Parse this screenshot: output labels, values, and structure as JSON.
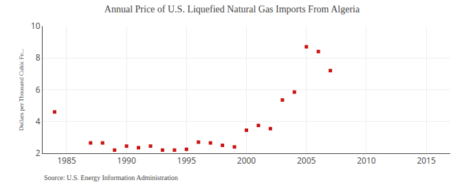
{
  "chart_data": {
    "type": "scatter",
    "title": "Annual Price of U.S. Liquefied Natural Gas Imports From Algeria",
    "ylabel": "Dollars per Thousand Cubic Fe...",
    "annotations": [
      "Source: U.S. Energy Information Administration"
    ],
    "x": [
      1984,
      1987,
      1988,
      1989,
      1990,
      1991,
      1992,
      1993,
      1994,
      1995,
      1996,
      1997,
      1998,
      1999,
      2000,
      2001,
      2002,
      2003,
      2004,
      2005,
      2006,
      2007
    ],
    "values": [
      4.6,
      2.65,
      2.65,
      2.2,
      2.45,
      2.35,
      2.45,
      2.2,
      2.2,
      2.25,
      2.7,
      2.65,
      2.5,
      2.4,
      3.45,
      3.75,
      3.55,
      5.35,
      5.85,
      8.7,
      8.4,
      7.2
    ],
    "color": "#cc1111",
    "marker": "square",
    "xlim": [
      1983,
      2017
    ],
    "ylim": [
      2,
      10
    ],
    "xticks": [
      1985,
      1990,
      1995,
      2000,
      2005,
      2010,
      2015
    ],
    "yticks": [
      2,
      4,
      6,
      8,
      10
    ],
    "grid": true
  }
}
